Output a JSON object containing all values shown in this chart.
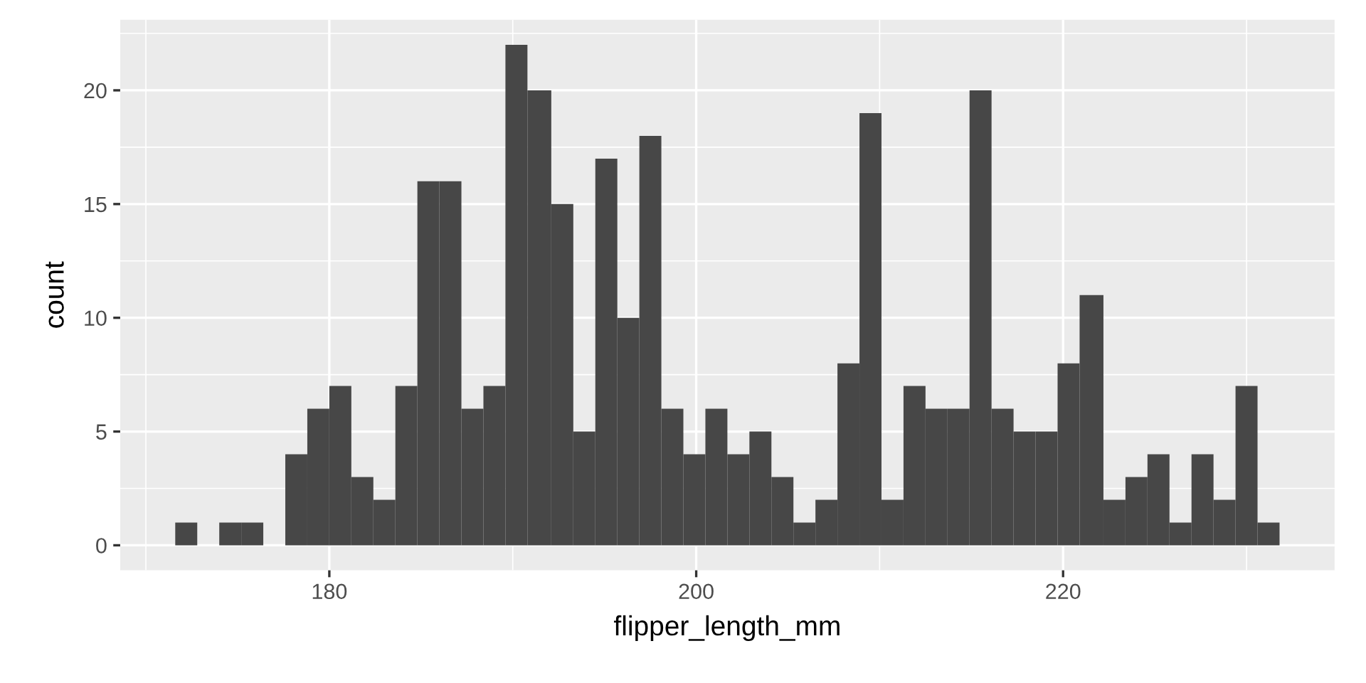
{
  "chart_data": {
    "type": "histogram",
    "xlabel": "flipper_length_mm",
    "ylabel": "count",
    "bins": [
      171.6,
      172.8,
      174.0,
      175.2,
      176.4,
      177.6,
      178.8,
      180.0,
      181.2,
      182.4,
      183.6,
      184.8,
      186.0,
      187.2,
      188.4,
      189.6,
      190.8,
      192.1,
      193.3,
      194.5,
      195.7,
      196.9,
      198.1,
      199.3,
      200.5,
      201.7,
      202.9,
      204.1,
      205.3,
      206.5,
      207.7,
      208.9,
      210.1,
      211.3,
      212.5,
      213.7,
      214.9,
      216.1,
      217.3,
      218.5,
      219.7,
      220.9,
      222.2,
      223.4,
      224.6,
      225.8,
      227.0,
      228.2,
      229.4,
      230.6,
      231.8
    ],
    "values": [
      1,
      0,
      1,
      1,
      0,
      4,
      6,
      7,
      3,
      2,
      7,
      16,
      16,
      6,
      7,
      22,
      20,
      15,
      5,
      17,
      10,
      18,
      6,
      4,
      6,
      4,
      5,
      3,
      1,
      2,
      8,
      19,
      2,
      7,
      6,
      6,
      20,
      6,
      5,
      5,
      8,
      11,
      2,
      3,
      4,
      1,
      4,
      2,
      7,
      1
    ],
    "color": "#474747",
    "xlim": [
      168.6,
      234.8
    ],
    "ylim": [
      -1.1,
      23.1
    ],
    "xticks": [
      180,
      200,
      220
    ],
    "yticks": [
      0,
      5,
      10,
      15,
      20
    ],
    "grid": true
  }
}
